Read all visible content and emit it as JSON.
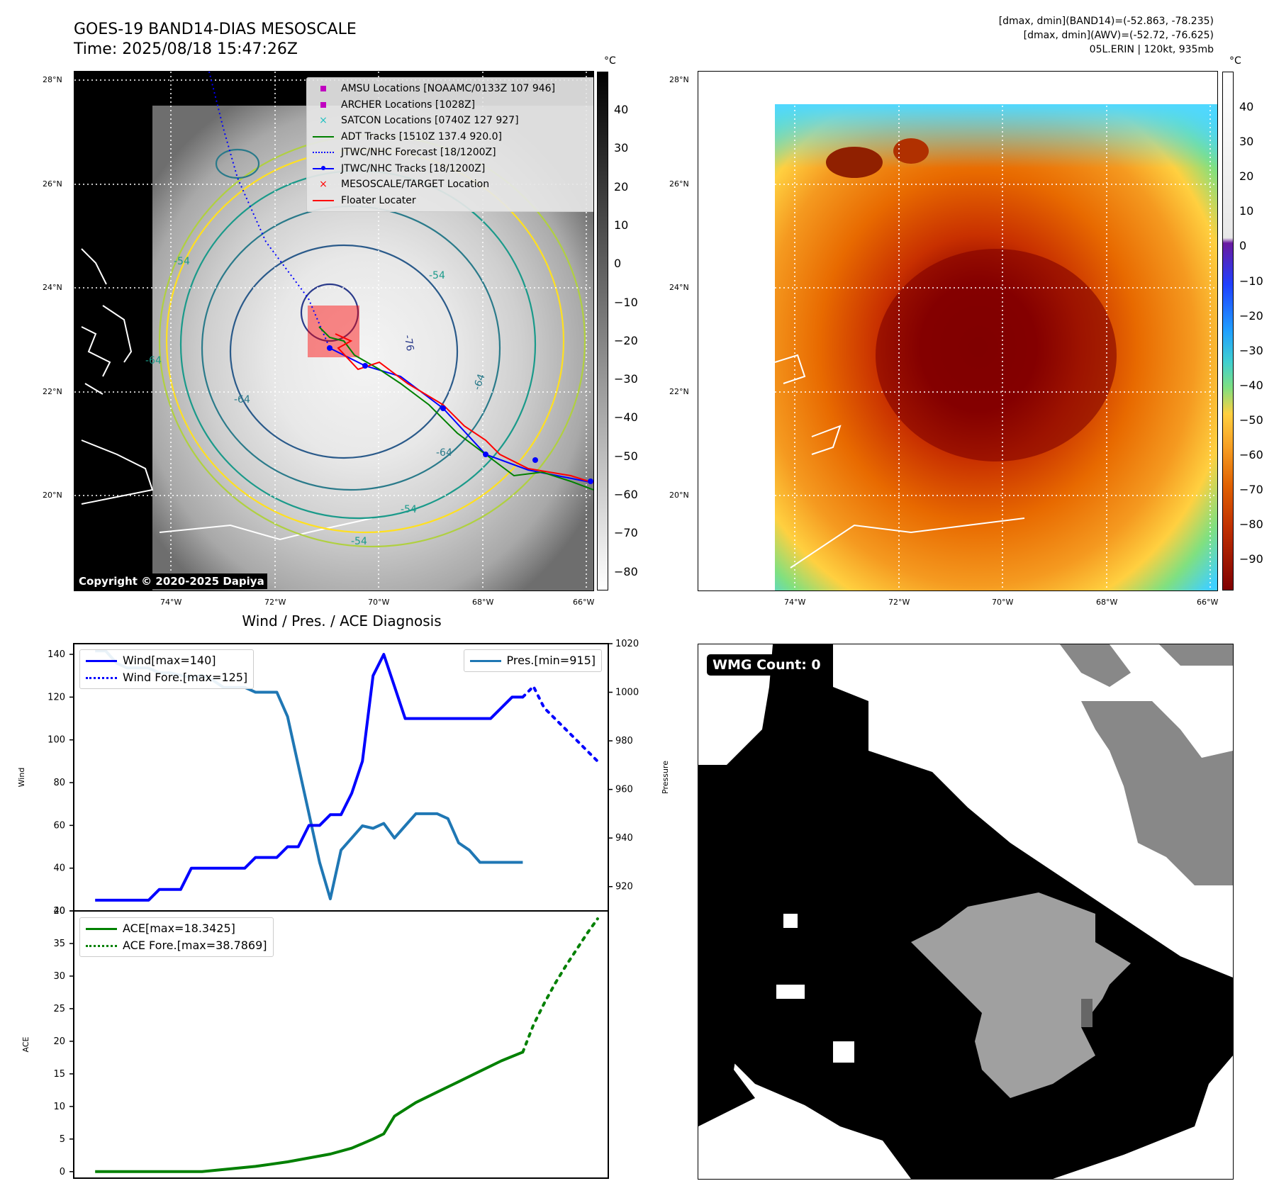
{
  "header": {
    "title_line1": "GOES-19 BAND14-DIAS MESOSCALE",
    "title_line2": "Time: 2025/08/18 15:47:26Z",
    "right_line1": "[dmax, dmin](BAND14)=(-52.863, -78.235)",
    "right_line2": "[dmax, dmin](AWV)=(-52.72, -76.625)",
    "right_line3": "05L.ERIN | 120kt, 935mb"
  },
  "map_axes": {
    "lat_labels": [
      "28°N",
      "26°N",
      "24°N",
      "22°N",
      "20°N"
    ],
    "lon_labels": [
      "74°W",
      "72°W",
      "70°W",
      "68°W",
      "66°W"
    ]
  },
  "colorbar_left": {
    "unit": "°C",
    "ticks": [
      "40",
      "30",
      "20",
      "10",
      "0",
      "−10",
      "−20",
      "−30",
      "−40",
      "−50",
      "−60",
      "−70",
      "−80"
    ]
  },
  "colorbar_right": {
    "unit": "°C",
    "ticks": [
      "40",
      "30",
      "20",
      "10",
      "0",
      "−10",
      "−20",
      "−30",
      "−40",
      "−50",
      "−60",
      "−70",
      "−80",
      "−90"
    ]
  },
  "legend": {
    "items": [
      {
        "label": "AMSU Locations [NOAAMC/0133Z 107 946]",
        "color": "#c000c0",
        "kind": "square"
      },
      {
        "label": "ARCHER Locations [1028Z]",
        "color": "#c000c0",
        "kind": "square"
      },
      {
        "label": "SATCON Locations [0740Z 127 927]",
        "color": "#20c0c0",
        "kind": "x"
      },
      {
        "label": "ADT Tracks [1510Z 137.4 920.0]",
        "color": "#008000",
        "kind": "line"
      },
      {
        "label": "JTWC/NHC Forecast [18/1200Z]",
        "color": "#0000ff",
        "kind": "dotted"
      },
      {
        "label": "JTWC/NHC Tracks [18/1200Z]",
        "color": "#0000ff",
        "kind": "line-dot"
      },
      {
        "label": "MESOSCALE/TARGET Location",
        "color": "#ff0000",
        "kind": "x"
      },
      {
        "label": "Floater Locater",
        "color": "#ff0000",
        "kind": "line"
      }
    ]
  },
  "contour_labels": [
    "-54",
    "-64",
    "-76",
    "-54",
    "-64",
    "-64",
    "-54",
    "-54",
    "-64"
  ],
  "copyright": "Copyright © 2020-2025 Dapiya",
  "wmg": {
    "label": "WMG Count: 0"
  },
  "chart_data": [
    {
      "type": "line",
      "title": "Wind / Pres. / ACE Diagnosis",
      "ylabel": "Wind",
      "ylim": [
        20,
        145
      ],
      "yticks": [
        20,
        40,
        60,
        80,
        100,
        120,
        140
      ],
      "xlim": [
        -2,
        48
      ],
      "series": [
        {
          "name": "Wind[max=140]",
          "color": "#0000ff",
          "style": "solid",
          "x": [
            0,
            5,
            6,
            8,
            9,
            10,
            14,
            15,
            16,
            17,
            18,
            19,
            20,
            21,
            22,
            23,
            24,
            25,
            26,
            27,
            28,
            29,
            30,
            31,
            32,
            33,
            34,
            35,
            36,
            37,
            38,
            39,
            40
          ],
          "y": [
            25,
            25,
            30,
            30,
            40,
            40,
            40,
            45,
            45,
            45,
            50,
            50,
            60,
            60,
            65,
            65,
            75,
            90,
            130,
            140,
            125,
            110,
            110,
            110,
            110,
            110,
            110,
            110,
            110,
            110,
            115,
            120,
            120
          ]
        },
        {
          "name": "Wind Fore.[max=125]",
          "color": "#0000ff",
          "style": "dotted",
          "x": [
            40,
            41,
            42,
            43,
            44,
            45,
            46,
            47
          ],
          "y": [
            120,
            125,
            115,
            110,
            105,
            100,
            95,
            90
          ]
        }
      ],
      "secondary_axis": {
        "ylabel": "Pressure",
        "ylim": [
          910,
          1020
        ],
        "yticks": [
          920,
          940,
          960,
          980,
          1000,
          1020
        ],
        "series": [
          {
            "name": "Pres.[min=915]",
            "color": "#1f77b4",
            "style": "solid",
            "x": [
              0,
              1,
              2,
              3,
              4,
              5,
              6,
              7,
              8,
              9,
              10,
              11,
              12,
              13,
              14,
              15,
              16,
              17,
              18,
              19,
              20,
              21,
              22,
              23,
              24,
              25,
              26,
              27,
              28,
              29,
              30,
              31,
              32,
              33,
              34,
              35,
              36,
              37,
              38,
              39,
              40
            ],
            "y": [
              1017,
              1017,
              1012,
              1010,
              1010,
              1010,
              1008,
              1008,
              1007,
              1006,
              1007,
              1005,
              1002,
              1002,
              1002,
              1000,
              1000,
              1000,
              990,
              970,
              950,
              930,
              915,
              935,
              940,
              945,
              944,
              946,
              940,
              945,
              950,
              950,
              950,
              948,
              938,
              935,
              930,
              930,
              930,
              930,
              930
            ]
          }
        ]
      }
    },
    {
      "type": "line",
      "ylabel": "ACE",
      "ylim": [
        -1,
        40
      ],
      "yticks": [
        0,
        5,
        10,
        15,
        20,
        25,
        30,
        35,
        40
      ],
      "xlim": [
        -2,
        48
      ],
      "series": [
        {
          "name": "ACE[max=18.3425]",
          "color": "#008000",
          "style": "solid",
          "x": [
            0,
            5,
            10,
            15,
            18,
            20,
            22,
            24,
            25,
            26,
            27,
            28,
            30,
            32,
            34,
            36,
            38,
            40
          ],
          "y": [
            0,
            0,
            0,
            0.8,
            1.5,
            2.1,
            2.7,
            3.6,
            4.3,
            5.0,
            5.8,
            8.5,
            10.6,
            12.2,
            13.8,
            15.4,
            17.0,
            18.34
          ]
        },
        {
          "name": "ACE Fore.[max=38.7869]",
          "color": "#008000",
          "style": "dotted",
          "x": [
            40,
            41,
            42,
            43,
            44,
            45,
            46,
            47
          ],
          "y": [
            18.34,
            22.5,
            25.8,
            28.8,
            31.5,
            34.0,
            36.5,
            38.79
          ]
        }
      ]
    }
  ]
}
